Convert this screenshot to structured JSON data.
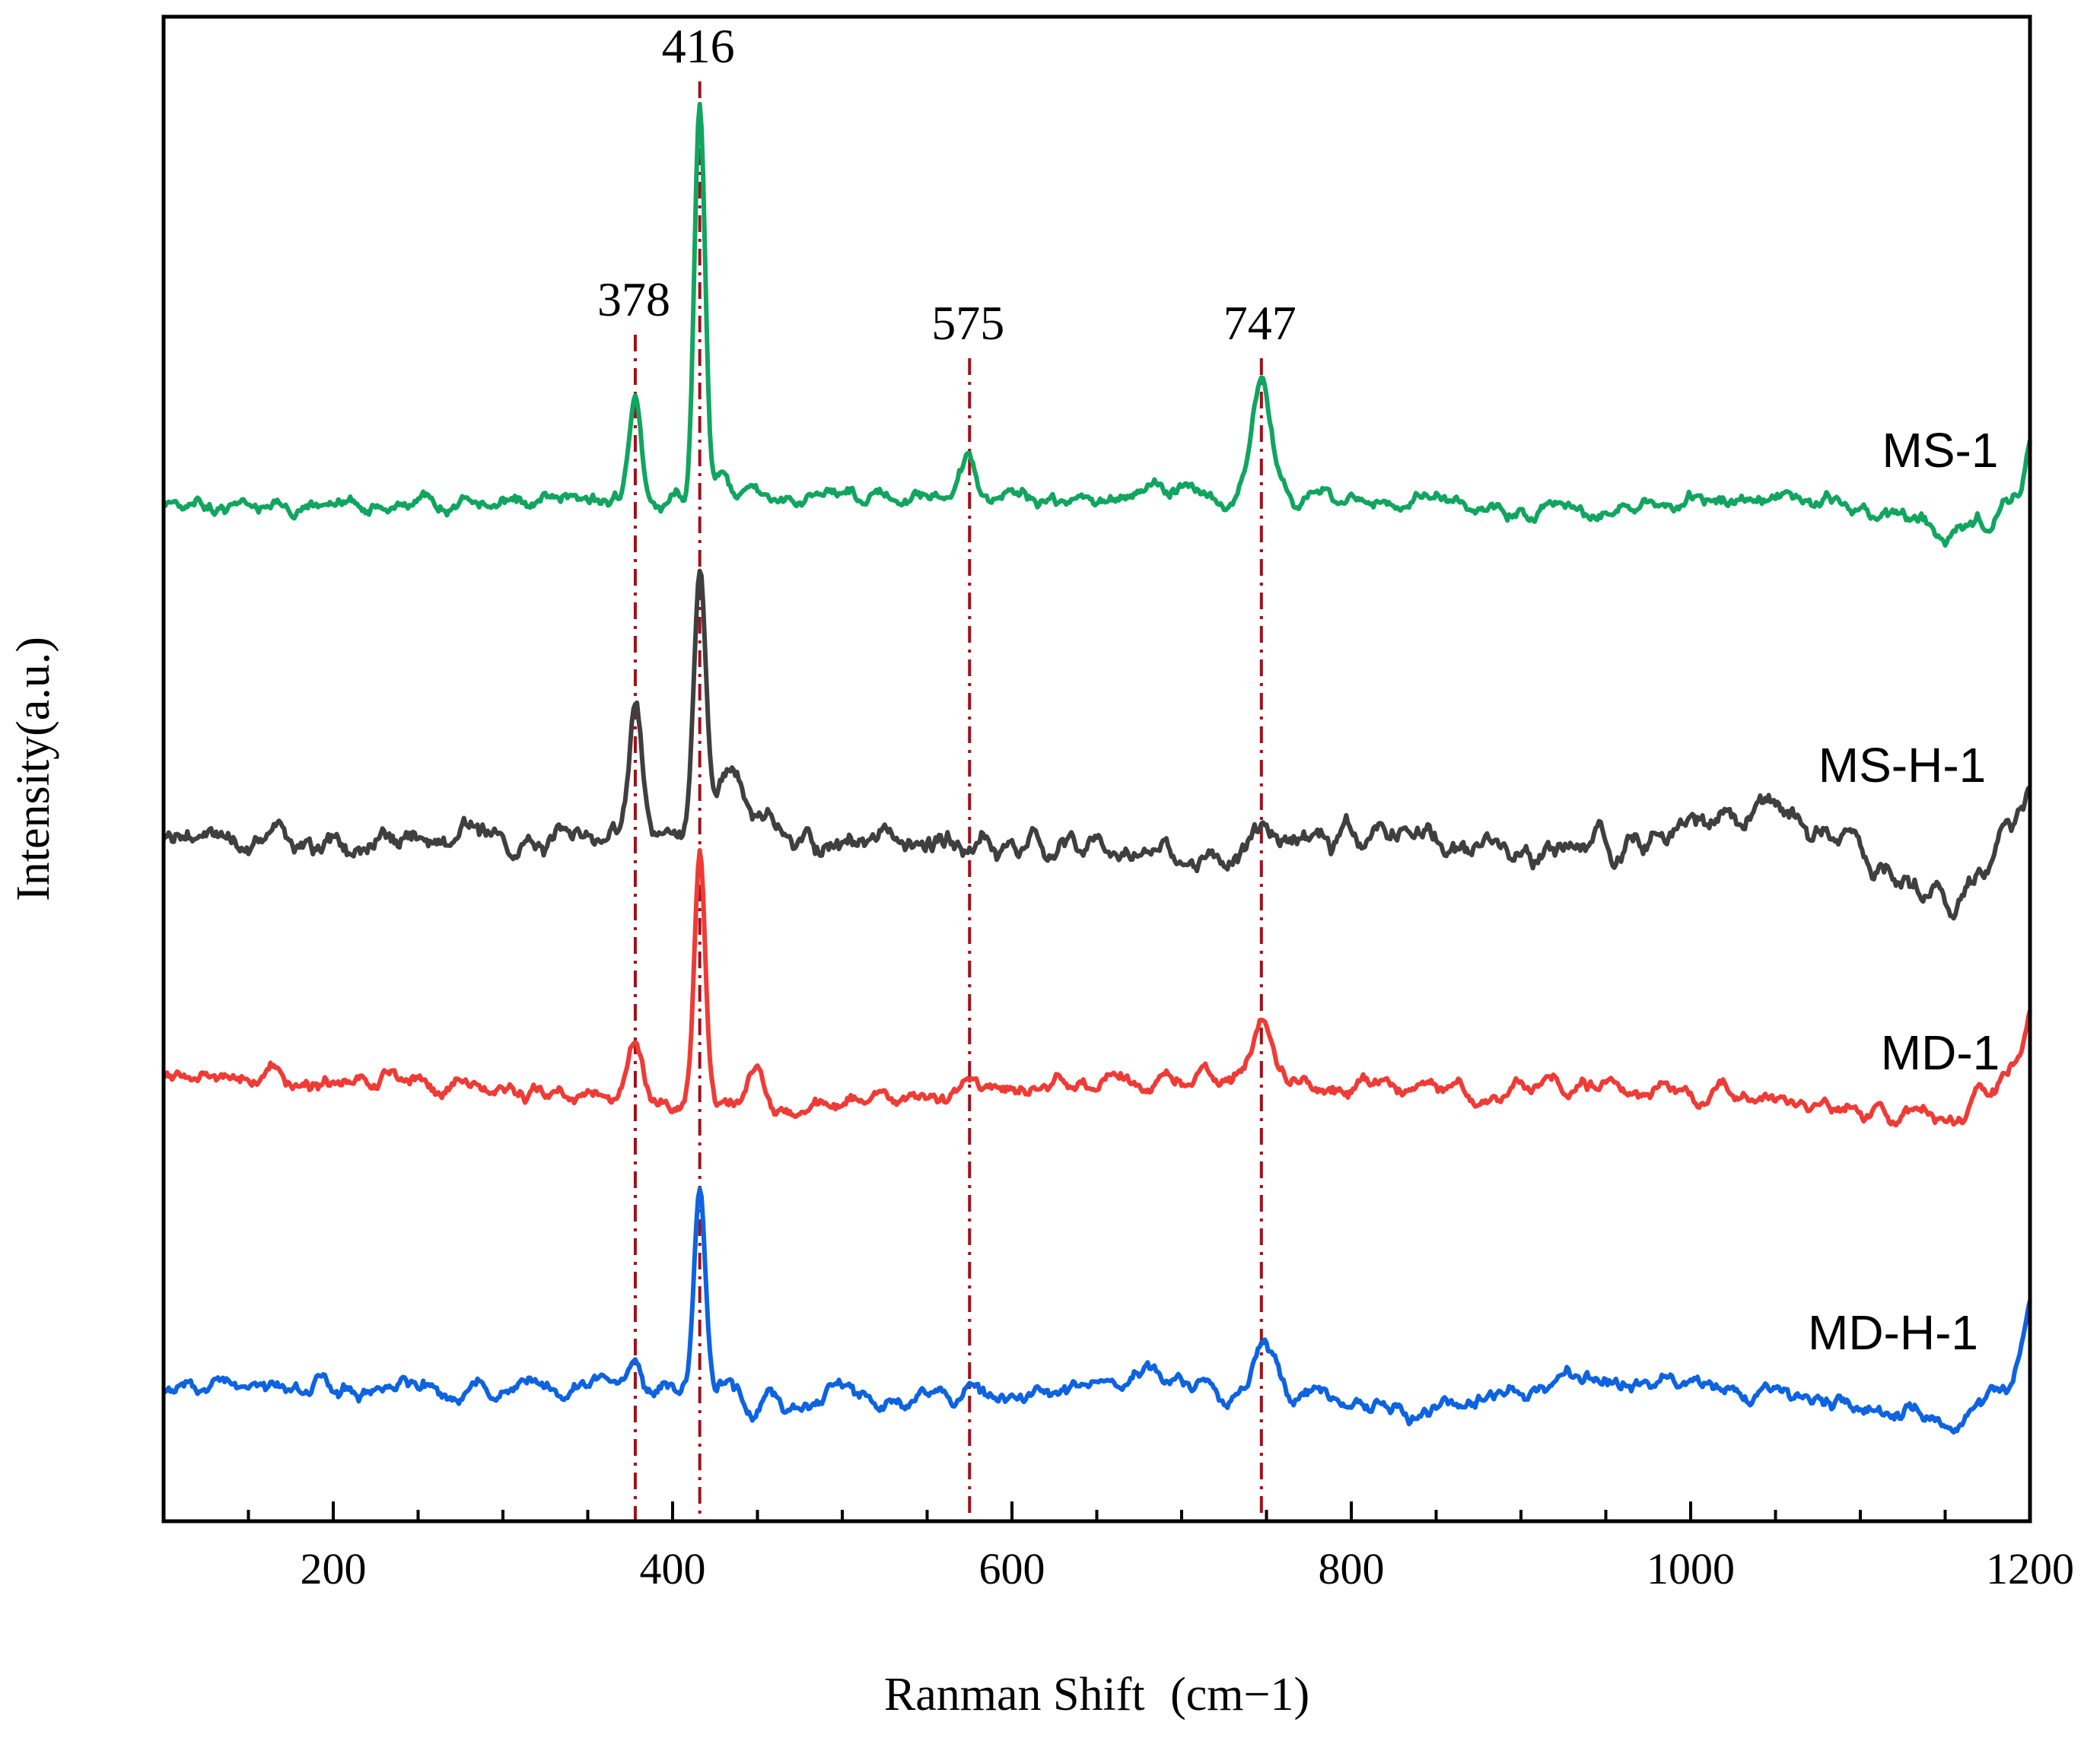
{
  "chart_data": {
    "type": "line",
    "title": "",
    "xlabel": "Ranman Shift",
    "xlabel_unit": "(cm−1)",
    "ylabel": "Intensity(a.u.)",
    "xlim": [
      100,
      1200
    ],
    "ylim": [
      0,
      100
    ],
    "xticks": [
      200,
      400,
      600,
      800,
      1000,
      1200
    ],
    "xtick_labels": [
      "200",
      "400",
      "600",
      "800",
      "1000",
      "1200"
    ],
    "y_ticks_shown": false,
    "legend": "none (series labelled inline on the right)",
    "grid": false,
    "reference_lines": [
      {
        "x": 378,
        "label": "378",
        "color": "#a0101a",
        "style": "dash-dot"
      },
      {
        "x": 416,
        "label": "416",
        "color": "#a0101a",
        "style": "dash-dot"
      },
      {
        "x": 575,
        "label": "575",
        "color": "#a0101a",
        "style": "dash-dot"
      },
      {
        "x": 747,
        "label": "747",
        "color": "#a0101a",
        "style": "dash-dot"
      }
    ],
    "series": [
      {
        "name": "MS-1",
        "color": "#11a560",
        "seed": 3,
        "baseline": 67.5,
        "noise": 0.9,
        "trend": [
          [
            100,
            0
          ],
          [
            300,
            0.3
          ],
          [
            600,
            0.6
          ],
          [
            700,
            0.9
          ],
          [
            800,
            0.4
          ],
          [
            950,
            -0.5
          ],
          [
            1050,
            0.9
          ],
          [
            1120,
            -0.5
          ],
          [
            1150,
            -2.0
          ],
          [
            1175,
            -1.5
          ],
          [
            1195,
            1.5
          ],
          [
            1200,
            5.0
          ]
        ],
        "peaks": [
          [
            378,
            6.5,
            3.5
          ],
          [
            416,
            26.5,
            3.2
          ],
          [
            430,
            1.8,
            4
          ],
          [
            448,
            1.2,
            5
          ],
          [
            575,
            2.5,
            4
          ],
          [
            747,
            7.5,
            6
          ]
        ]
      },
      {
        "name": "MS-H-1",
        "color": "#3f3f3f",
        "seed": 11,
        "baseline": 45.3,
        "noise": 1.4,
        "trend": [
          [
            100,
            0
          ],
          [
            300,
            0.2
          ],
          [
            650,
            -0.3
          ],
          [
            700,
            -1.2
          ],
          [
            800,
            0.2
          ],
          [
            950,
            -0.3
          ],
          [
            1050,
            1.8
          ],
          [
            1100,
            -0.8
          ],
          [
            1140,
            -4.2
          ],
          [
            1165,
            -3.5
          ],
          [
            1185,
            0.3
          ],
          [
            1200,
            2.5
          ]
        ],
        "peaks": [
          [
            378,
            8.5,
            3.8
          ],
          [
            416,
            17.5,
            3.6
          ],
          [
            432,
            3.5,
            7
          ],
          [
            450,
            1.5,
            5
          ],
          [
            747,
            1.2,
            5
          ]
        ]
      },
      {
        "name": "MD-1",
        "color": "#ef3b36",
        "seed": 23,
        "baseline": 28.8,
        "noise": 0.9,
        "trend": [
          [
            100,
            0.6
          ],
          [
            115,
            0.8
          ],
          [
            300,
            0
          ],
          [
            350,
            -0.4
          ],
          [
            460,
            -1.5
          ],
          [
            600,
            0
          ],
          [
            700,
            0.5
          ],
          [
            800,
            0
          ],
          [
            1000,
            -0.3
          ],
          [
            1150,
            -2.0
          ],
          [
            1180,
            -0.5
          ],
          [
            1195,
            2.0
          ],
          [
            1200,
            5.5
          ]
        ],
        "peaks": [
          [
            378,
            3.5,
            4
          ],
          [
            416,
            16.5,
            3.2
          ],
          [
            450,
            2.6,
            5
          ],
          [
            575,
            1.0,
            4
          ],
          [
            747,
            4.0,
            6
          ]
        ]
      },
      {
        "name": "MD-H-1",
        "color": "#0d63e0",
        "seed": 37,
        "baseline": 8.6,
        "noise": 1.0,
        "trend": [
          [
            100,
            0
          ],
          [
            300,
            0.4
          ],
          [
            480,
            -0.8
          ],
          [
            600,
            -0.5
          ],
          [
            650,
            0.3
          ],
          [
            680,
            1.8
          ],
          [
            700,
            0.3
          ],
          [
            850,
            -1.2
          ],
          [
            900,
            0
          ],
          [
            1000,
            0.6
          ],
          [
            1100,
            -0.8
          ],
          [
            1150,
            -2.0
          ],
          [
            1175,
            -1.2
          ],
          [
            1190,
            1.5
          ],
          [
            1200,
            6.5
          ]
        ],
        "peaks": [
          [
            378,
            2.5,
            3.5
          ],
          [
            416,
            14.5,
            3.3
          ],
          [
            432,
            1.5,
            5
          ],
          [
            500,
            1.8,
            8
          ],
          [
            575,
            1.5,
            4
          ],
          [
            747,
            4.0,
            6
          ]
        ]
      }
    ]
  }
}
